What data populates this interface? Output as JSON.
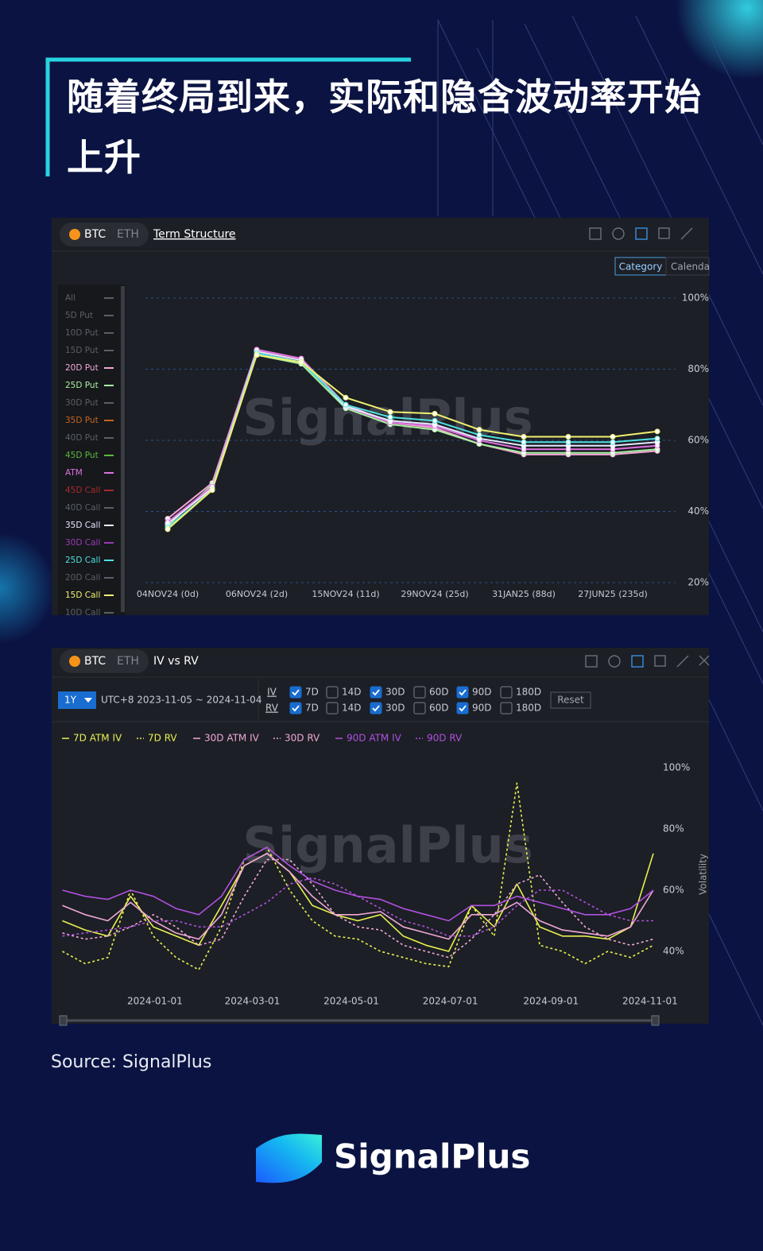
{
  "header": {
    "title": "随着终局到来，实际和隐含波动率开始上升"
  },
  "panel_1": {
    "tabs": [
      "BTC",
      "ETH"
    ],
    "view": "Term Structure",
    "modes": [
      "Category",
      "Calenda"
    ],
    "filters": [
      {
        "label": "All",
        "color": "#5a5f68"
      },
      {
        "label": "5D Put",
        "color": "#5a5f68"
      },
      {
        "label": "10D Put",
        "color": "#5a5f68"
      },
      {
        "label": "15D Put",
        "color": "#5a5f68"
      },
      {
        "label": "20D Put",
        "color": "#f4a6d8"
      },
      {
        "label": "25D Put",
        "color": "#a8f0a0"
      },
      {
        "label": "30D Put",
        "color": "#5a5f68"
      },
      {
        "label": "35D Put",
        "color": "#c8641e"
      },
      {
        "label": "40D Put",
        "color": "#5a5f68"
      },
      {
        "label": "45D Put",
        "color": "#5cb83a"
      },
      {
        "label": "ATM",
        "color": "#e070e0"
      },
      {
        "label": "45D Call",
        "color": "#a82a2a"
      },
      {
        "label": "40D Call",
        "color": "#5a5f68"
      },
      {
        "label": "35D Call",
        "color": "#e8e8ff"
      },
      {
        "label": "30D Call",
        "color": "#9a3ab8"
      },
      {
        "label": "25D Call",
        "color": "#4fe0e0"
      },
      {
        "label": "20D Call",
        "color": "#5a5f68"
      },
      {
        "label": "15D Call",
        "color": "#f0f070"
      },
      {
        "label": "10D Call",
        "color": "#5a5f68"
      }
    ]
  },
  "panel_2": {
    "tabs": [
      "BTC",
      "ETH"
    ],
    "view": "IV vs RV",
    "range": "1Y",
    "date_range": "UTC+8 2023-11-05 ~ 2024-11-04",
    "rows": [
      {
        "label": "IV",
        "options": [
          {
            "label": "7D",
            "checked": true
          },
          {
            "label": "14D",
            "checked": false
          },
          {
            "label": "30D",
            "checked": true
          },
          {
            "label": "60D",
            "checked": false
          },
          {
            "label": "90D",
            "checked": true
          },
          {
            "label": "180D",
            "checked": false
          }
        ]
      },
      {
        "label": "RV",
        "options": [
          {
            "label": "7D",
            "checked": true
          },
          {
            "label": "14D",
            "checked": false
          },
          {
            "label": "30D",
            "checked": true
          },
          {
            "label": "60D",
            "checked": false
          },
          {
            "label": "90D",
            "checked": true
          },
          {
            "label": "180D",
            "checked": false
          }
        ]
      }
    ],
    "reset": "Reset"
  },
  "watermark": "SignalPlus",
  "chart_data": [
    {
      "type": "line",
      "markers": true,
      "grid": true,
      "categories": [
        "04NOV24 (0d)",
        null,
        "06NOV24 (2d)",
        null,
        "15NOV24 (11d)",
        null,
        "29NOV24 (25d)",
        null,
        "31JAN25 (88d)",
        null,
        "27JUN25 (235d)",
        null
      ],
      "ylim": [
        20,
        100
      ],
      "yticks": [
        {
          "value": 20,
          "label": "20%"
        },
        {
          "value": 40,
          "label": "40%"
        },
        {
          "value": 60,
          "label": "60%"
        },
        {
          "value": 80,
          "label": "80%"
        },
        {
          "value": 100,
          "label": "100%"
        }
      ],
      "series": [
        {
          "name": "20D Put",
          "color": "#f4a6d8",
          "values": [
            38,
            48,
            85.5,
            83,
            70,
            65,
            63.5,
            59,
            56,
            56,
            56,
            57
          ]
        },
        {
          "name": "25D Put",
          "color": "#a8f0a0",
          "values": [
            36,
            47.5,
            84,
            81.5,
            69,
            64.5,
            63,
            59,
            56.5,
            56.5,
            56.5,
            57.5
          ]
        },
        {
          "name": "ATM",
          "color": "#e070e0",
          "values": [
            37,
            47,
            85.5,
            83,
            69.5,
            65,
            64,
            60,
            57.5,
            57.5,
            57.5,
            58.5
          ]
        },
        {
          "name": "35D Call",
          "color": "#e8e8ff",
          "values": [
            36.5,
            46.5,
            85,
            82.5,
            69.5,
            65.5,
            64.5,
            60.5,
            58.5,
            58.5,
            58.5,
            59.5
          ]
        },
        {
          "name": "25D Call",
          "color": "#4fe0e0",
          "values": [
            35.5,
            46,
            84.5,
            82,
            70,
            66.5,
            65.5,
            61.5,
            59.5,
            59.5,
            59.5,
            60.5
          ]
        },
        {
          "name": "15D Call",
          "color": "#f0f070",
          "values": [
            35,
            46,
            84,
            82,
            72,
            68,
            67.5,
            63,
            61,
            61,
            61,
            62.5
          ]
        }
      ]
    },
    {
      "type": "line",
      "grid": false,
      "legend": "top-left",
      "y_label": "Volatility",
      "x": [
        "2023-11-05",
        "2023-11-19",
        "2023-12-03",
        "2023-12-17",
        "2023-12-31",
        "2024-01-14",
        "2024-01-28",
        "2024-02-11",
        "2024-02-25",
        "2024-03-10",
        "2024-03-24",
        "2024-04-07",
        "2024-04-21",
        "2024-05-05",
        "2024-05-19",
        "2024-06-02",
        "2024-06-16",
        "2024-06-30",
        "2024-07-14",
        "2024-07-28",
        "2024-08-11",
        "2024-08-25",
        "2024-09-08",
        "2024-09-22",
        "2024-10-06",
        "2024-10-20",
        "2024-11-03"
      ],
      "xlim": [
        "2023-11-05",
        "2024-11-04"
      ],
      "xticks": [
        "2024-01-01",
        "2024-03-01",
        "2024-05-01",
        "2024-07-01",
        "2024-09-01",
        "2024-11-01"
      ],
      "ylim": [
        29,
        104
      ],
      "yticks": [
        {
          "value": 40,
          "label": "40%"
        },
        {
          "value": 60,
          "label": "60%"
        },
        {
          "value": 80,
          "label": "80%"
        },
        {
          "value": 100,
          "label": "100%"
        }
      ],
      "series": [
        {
          "name": "7D ATM IV",
          "color": "#e8f050",
          "dash": false,
          "values": [
            50,
            47,
            45,
            58,
            48,
            45,
            42,
            55,
            68,
            72,
            66,
            55,
            52,
            50,
            52,
            45,
            42,
            40,
            55,
            48,
            62,
            48,
            45,
            45,
            44,
            48,
            72
          ]
        },
        {
          "name": "7D RV",
          "color": "#e8f050",
          "dash": true,
          "values": [
            40,
            36,
            38,
            60,
            45,
            38,
            34,
            48,
            70,
            74,
            60,
            50,
            45,
            44,
            40,
            38,
            36,
            35,
            55,
            45,
            95,
            42,
            40,
            36,
            40,
            38,
            42
          ]
        },
        {
          "name": "30D ATM IV",
          "color": "#f0a8d8",
          "dash": false,
          "values": [
            55,
            52,
            50,
            56,
            50,
            46,
            44,
            52,
            68,
            72,
            66,
            58,
            52,
            52,
            53,
            48,
            46,
            44,
            52,
            52,
            56,
            50,
            47,
            46,
            45,
            48,
            60
          ]
        },
        {
          "name": "30D RV",
          "color": "#f0a8d8",
          "dash": true,
          "values": [
            46,
            44,
            45,
            48,
            52,
            48,
            42,
            44,
            58,
            70,
            70,
            62,
            52,
            48,
            47,
            42,
            40,
            38,
            44,
            52,
            62,
            65,
            56,
            48,
            44,
            42,
            44
          ]
        },
        {
          "name": "90D ATM IV",
          "color": "#b050e0",
          "dash": false,
          "values": [
            60,
            58,
            57,
            60,
            58,
            54,
            52,
            58,
            70,
            74,
            68,
            63,
            60,
            58,
            57,
            54,
            52,
            50,
            55,
            55,
            58,
            56,
            54,
            52,
            52,
            54,
            60
          ]
        },
        {
          "name": "90D RV",
          "color": "#b050e0",
          "dash": true,
          "values": [
            45,
            46,
            47,
            48,
            50,
            50,
            48,
            48,
            52,
            56,
            62,
            64,
            62,
            58,
            54,
            50,
            48,
            45,
            45,
            48,
            55,
            60,
            60,
            56,
            52,
            50,
            50
          ]
        }
      ]
    }
  ],
  "source": "Source: SignalPlus",
  "logo": "SignalPlus"
}
